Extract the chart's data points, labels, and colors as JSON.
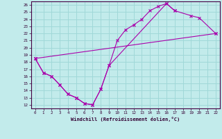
{
  "xlabel": "Windchill (Refroidissement éolien,°C)",
  "xlim": [
    -0.5,
    22.5
  ],
  "ylim": [
    11.5,
    26.5
  ],
  "xticks": [
    0,
    1,
    2,
    3,
    4,
    5,
    6,
    7,
    8,
    9,
    10,
    11,
    12,
    13,
    14,
    15,
    16,
    17,
    18,
    19,
    20,
    21,
    22
  ],
  "yticks": [
    12,
    13,
    14,
    15,
    16,
    17,
    18,
    19,
    20,
    21,
    22,
    23,
    24,
    25,
    26
  ],
  "bg_color": "#c2ebeb",
  "grid_color": "#a0d8d8",
  "line_color": "#aa00aa",
  "series": [
    {
      "x": [
        0,
        1,
        2,
        3,
        4,
        5,
        6,
        7,
        8,
        9,
        10,
        11,
        12,
        13,
        14,
        15,
        16,
        17
      ],
      "y": [
        18.5,
        16.5,
        16.0,
        14.8,
        13.5,
        13.0,
        12.2,
        12.0,
        14.2,
        17.5,
        21.0,
        22.5,
        23.2,
        24.0,
        25.2,
        25.8,
        26.2,
        25.2
      ]
    },
    {
      "x": [
        0,
        22
      ],
      "y": [
        18.5,
        22.0
      ]
    },
    {
      "x": [
        0,
        1,
        2,
        3,
        4,
        5,
        6,
        7,
        8,
        9,
        16,
        17,
        19,
        20,
        22
      ],
      "y": [
        18.5,
        16.5,
        16.0,
        14.8,
        13.5,
        13.0,
        12.2,
        12.0,
        14.2,
        17.5,
        26.2,
        25.2,
        24.5,
        24.2,
        22.0
      ]
    }
  ]
}
